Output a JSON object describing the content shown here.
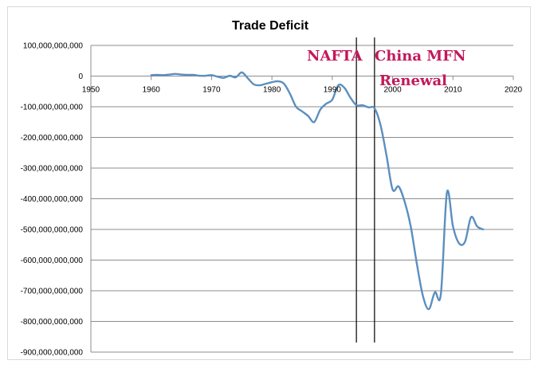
{
  "chart_data": {
    "type": "line",
    "title": "Trade Deficit",
    "xlabel": "",
    "ylabel": "",
    "xlim": [
      1950,
      2020
    ],
    "ylim": [
      -900000000000,
      100000000000
    ],
    "x_ticks": [
      1950,
      1960,
      1970,
      1980,
      1990,
      2000,
      2010,
      2020
    ],
    "y_ticks": [
      100000000000,
      0,
      -100000000000,
      -200000000000,
      -300000000000,
      -400000000000,
      -500000000000,
      -600000000000,
      -700000000000,
      -800000000000,
      -900000000000
    ],
    "y_tick_labels": [
      "100,000,000,000",
      "0",
      "-100,000,000,000",
      "-200,000,000,000",
      "-300,000,000,000",
      "-400,000,000,000",
      "-500,000,000,000",
      "-600,000,000,000",
      "-700,000,000,000",
      "-800,000,000,000",
      "-900,000,000,000"
    ],
    "grid": true,
    "legend": false,
    "line_color": "#5b8fbf",
    "series": [
      {
        "x": [
          1960,
          1961,
          1962,
          1963,
          1964,
          1965,
          1966,
          1967,
          1968,
          1969,
          1970,
          1971,
          1972,
          1973,
          1974,
          1975,
          1976,
          1977,
          1978,
          1979,
          1980,
          1981,
          1982,
          1983,
          1984,
          1985,
          1986,
          1987,
          1988,
          1989,
          1990,
          1991,
          1992,
          1993,
          1994,
          1995,
          1996,
          1997,
          1998,
          1999,
          2000,
          2001,
          2002,
          2003,
          2004,
          2005,
          2006,
          2007,
          2008,
          2009,
          2010,
          2011,
          2012,
          2013,
          2014,
          2015
        ],
        "values": [
          3000000000,
          4000000000,
          3000000000,
          5000000000,
          7000000000,
          5000000000,
          4000000000,
          4000000000,
          1000000000,
          1000000000,
          3000000000,
          -2000000000,
          -6000000000,
          1000000000,
          -4000000000,
          12000000000,
          -7000000000,
          -27000000000,
          -30000000000,
          -25000000000,
          -20000000000,
          -17000000000,
          -25000000000,
          -58000000000,
          -100000000000,
          -115000000000,
          -130000000000,
          -150000000000,
          -110000000000,
          -90000000000,
          -77000000000,
          -30000000000,
          -38000000000,
          -70000000000,
          -95000000000,
          -95000000000,
          -102000000000,
          -105000000000,
          -160000000000,
          -260000000000,
          -370000000000,
          -360000000000,
          -410000000000,
          -490000000000,
          -610000000000,
          -715000000000,
          -760000000000,
          -705000000000,
          -710000000000,
          -380000000000,
          -490000000000,
          -545000000000,
          -540000000000,
          -460000000000,
          -490000000000,
          -500000000000
        ]
      }
    ],
    "reference_lines": [
      {
        "x": 1994,
        "label": "NAFTA"
      },
      {
        "x": 1997,
        "label": "China MFN Renewal"
      }
    ],
    "annotations": [
      {
        "text": "NAFTA"
      },
      {
        "text": "China MFN"
      },
      {
        "text": "Renewal"
      }
    ]
  }
}
